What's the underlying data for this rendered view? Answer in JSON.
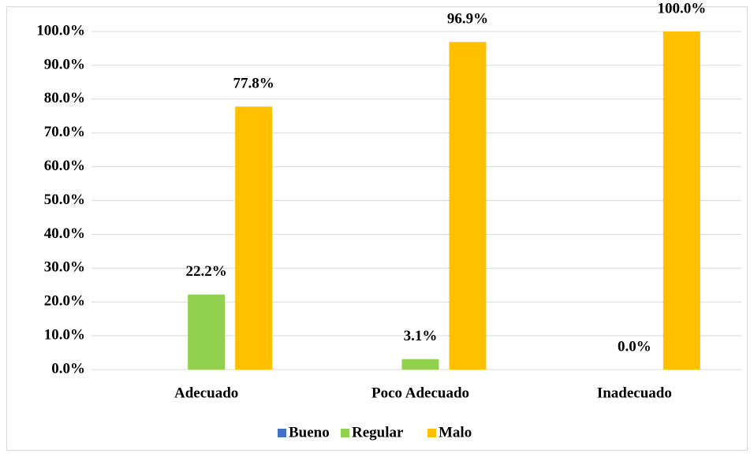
{
  "chart_data": {
    "type": "bar",
    "categories": [
      "Adecuado",
      "Poco Adecuado",
      "Inadecuado"
    ],
    "series": [
      {
        "name": "Bueno",
        "color": "#4472c4",
        "values": [
          0,
          0,
          0
        ]
      },
      {
        "name": "Regular",
        "color": "#92d050",
        "values": [
          22.2,
          3.1,
          0.0
        ],
        "value_labels": [
          "22.2%",
          "3.1%",
          "0.0%"
        ]
      },
      {
        "name": "Malo",
        "color": "#ffc000",
        "values": [
          77.8,
          96.9,
          100.0
        ],
        "value_labels": [
          "77.8%",
          "96.9%",
          "100.0%"
        ]
      }
    ],
    "ylim": [
      0,
      100
    ],
    "yticks": [
      {
        "value": 0,
        "label": "0.0%"
      },
      {
        "value": 10,
        "label": "10.0%"
      },
      {
        "value": 20,
        "label": "20.0%"
      },
      {
        "value": 30,
        "label": "30.0%"
      },
      {
        "value": 40,
        "label": "40.0%"
      },
      {
        "value": 50,
        "label": "50.0%"
      },
      {
        "value": 60,
        "label": "60.0%"
      },
      {
        "value": 70,
        "label": "70.0%"
      },
      {
        "value": 80,
        "label": "80.0%"
      },
      {
        "value": 90,
        "label": "90.0%"
      },
      {
        "value": 100,
        "label": "100.0%"
      }
    ],
    "grid": true,
    "legend": "bottom"
  }
}
